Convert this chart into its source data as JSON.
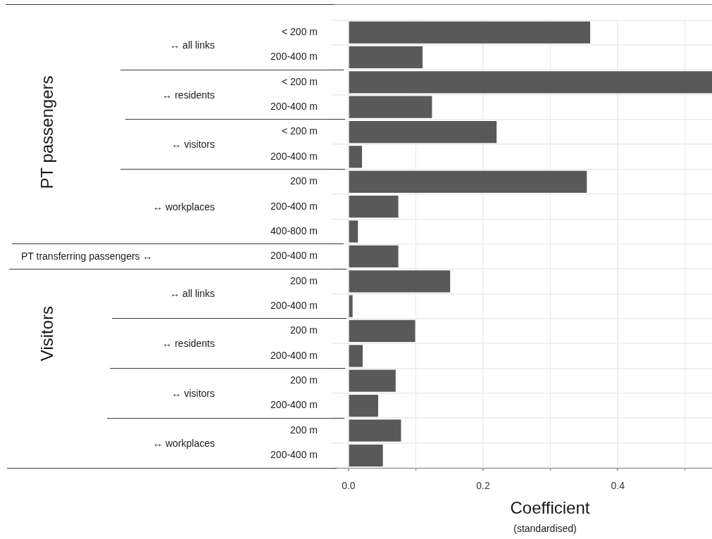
{
  "chart_data": {
    "type": "bar",
    "orientation": "horizontal",
    "categories": [
      "< 200 m",
      "200-400 m",
      "< 200 m",
      "200-400 m",
      "< 200 m",
      "200-400 m",
      "200 m",
      "200-400 m",
      "400-800 m",
      "200-400 m",
      "200 m",
      "200-400 m",
      "200 m",
      "200-400 m",
      "200 m",
      "200-400 m",
      "200 m",
      "200-400 m"
    ],
    "values": [
      0.359,
      0.11,
      0.54,
      0.124,
      0.22,
      0.02,
      0.354,
      0.074,
      0.014,
      0.074,
      0.151,
      0.006,
      0.099,
      0.021,
      0.07,
      0.044,
      0.078,
      0.051
    ],
    "color": "#595959",
    "xlim": [
      -0.025,
      0.54
    ],
    "xticks": [
      {
        "value": 0,
        "label": "0.0"
      },
      {
        "value": 0.1,
        "label": null
      },
      {
        "value": 0.2,
        "label": "0.2"
      },
      {
        "value": 0.3,
        "label": null
      },
      {
        "value": 0.4,
        "label": "0.4"
      },
      {
        "value": 0.5,
        "label": null
      }
    ],
    "grid": true,
    "xlabel": "Coefficient",
    "annotations": [
      "(standardised)",
      "PT passengers",
      "Visitors",
      "↔ all links",
      "↔ residents",
      "↔ visitors",
      "↔ workplaces",
      "PT transferring passengers ↔",
      "↔ all links",
      "↔ residents",
      "↔ visitors",
      "↔ workplaces"
    ]
  }
}
